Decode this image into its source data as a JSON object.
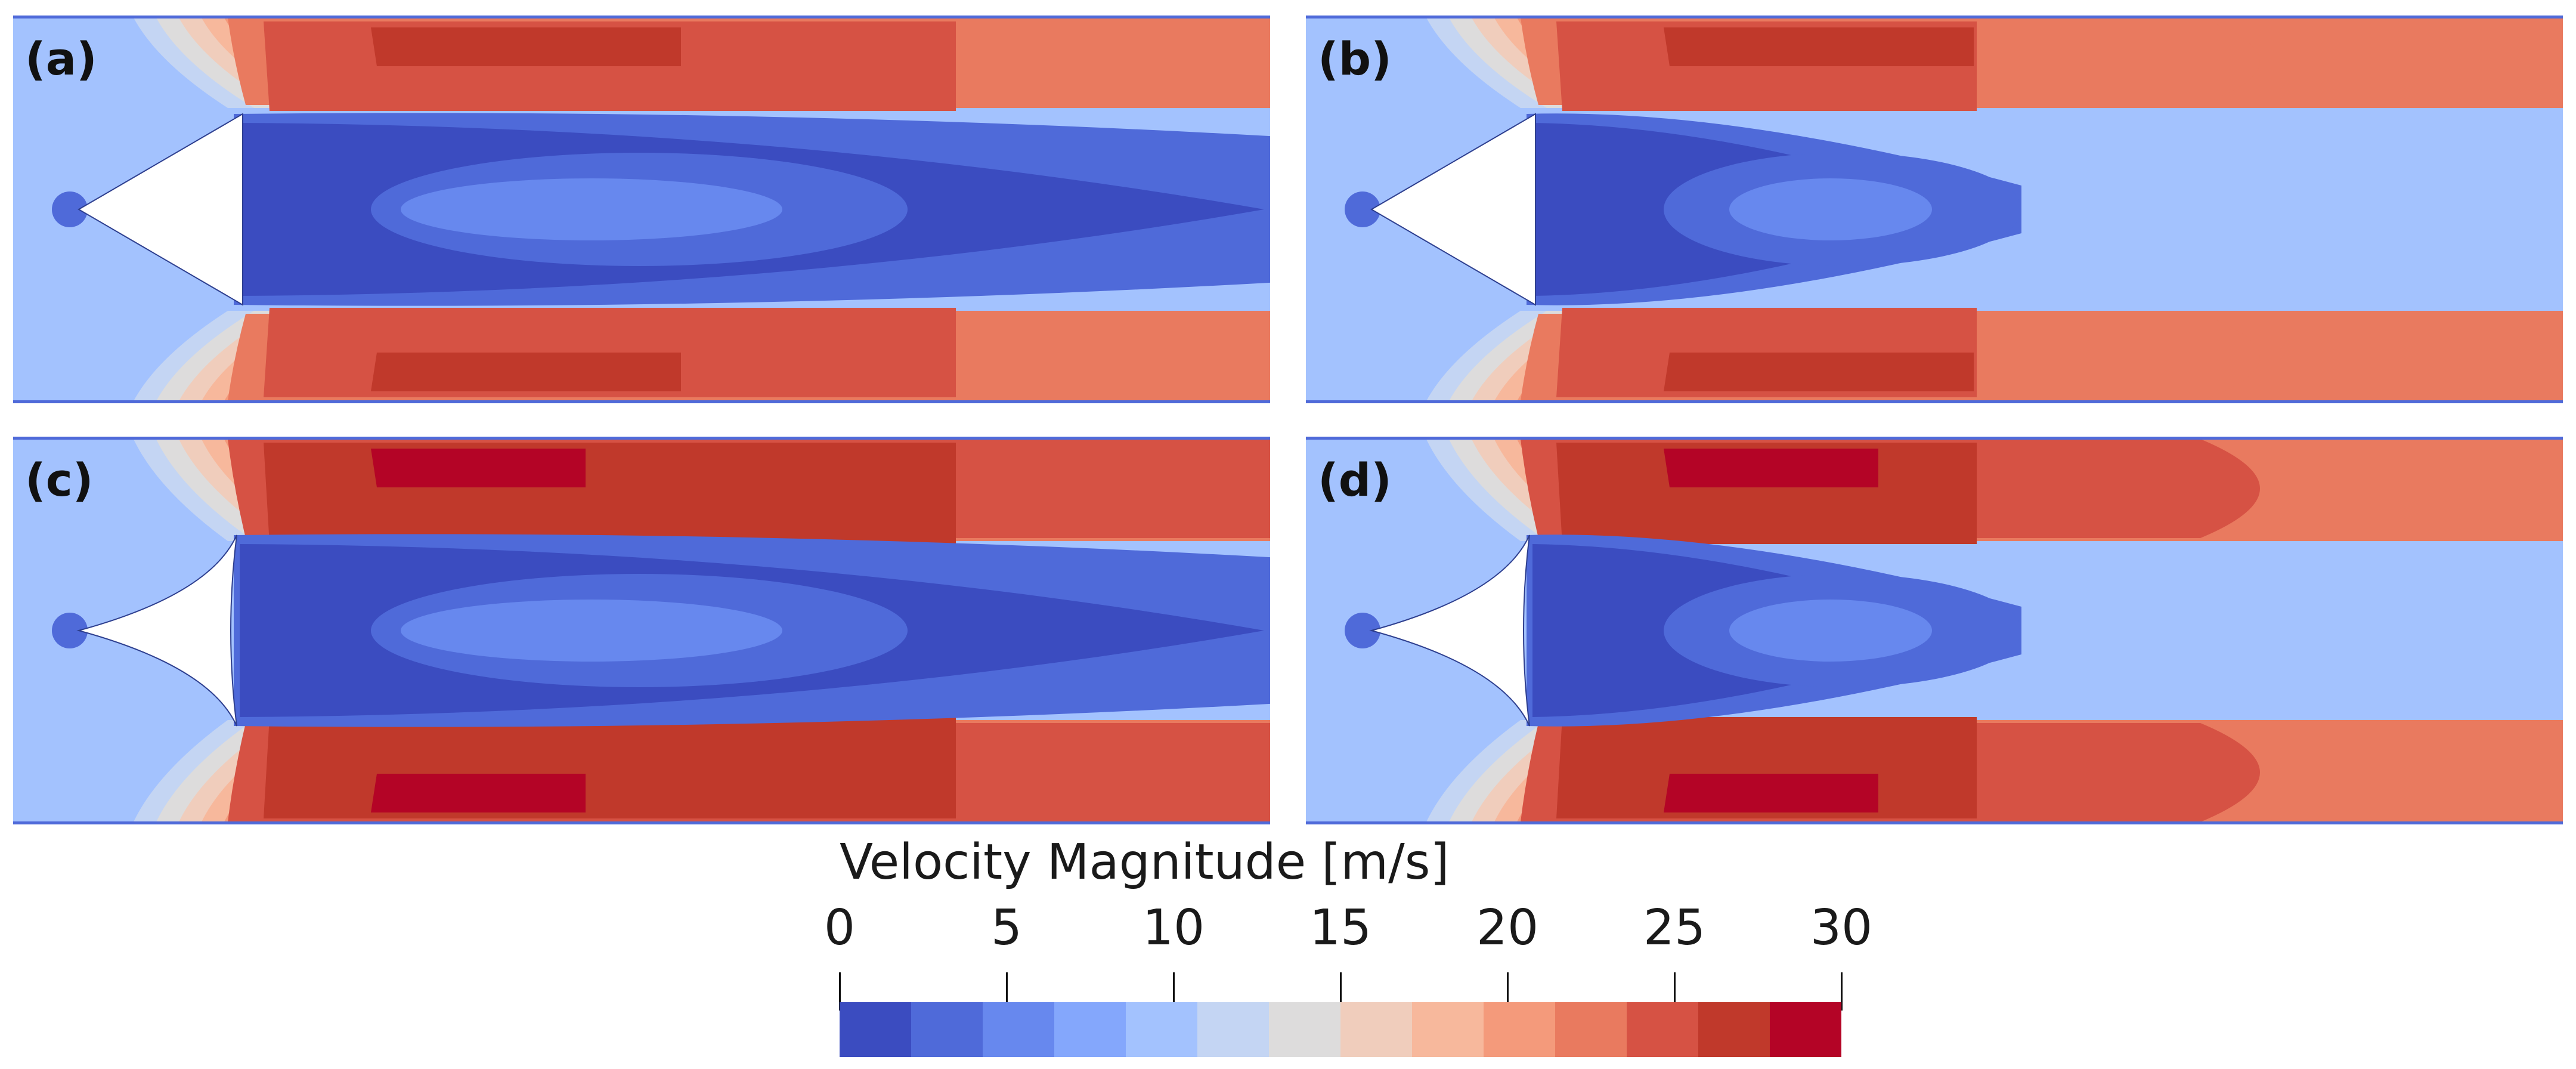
{
  "figure": {
    "panels": [
      {
        "label": "(a)",
        "nose": "straight",
        "wake": "long"
      },
      {
        "label": "(b)",
        "nose": "straight",
        "wake": "short"
      },
      {
        "label": "(c)",
        "nose": "concave",
        "wake": "long"
      },
      {
        "label": "(d)",
        "nose": "concave",
        "wake": "short"
      }
    ],
    "colorbar": {
      "title": "Velocity Magnitude [m/s]",
      "min": 0,
      "max": 30,
      "ticks": [
        "0",
        "5",
        "10",
        "15",
        "20",
        "25",
        "30"
      ],
      "colors": [
        "#3b4cc0",
        "#4f6ad9",
        "#6788ee",
        "#84a7fc",
        "#a3c2fe",
        "#c4d5f3",
        "#dddcdc",
        "#f0cdbc",
        "#f7b89c",
        "#f49a7b",
        "#e97a5f",
        "#d65244",
        "#c0392b",
        "#b40426"
      ]
    }
  }
}
